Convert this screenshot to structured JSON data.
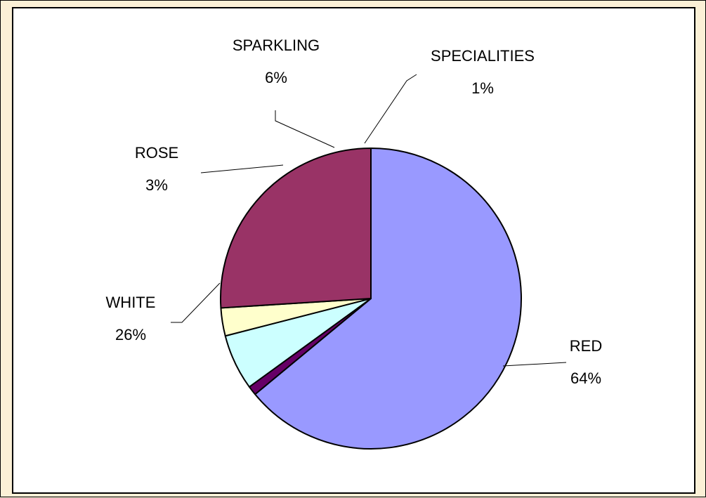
{
  "chart_data": {
    "type": "pie",
    "title": "",
    "categories": [
      "RED",
      "WHITE",
      "ROSE",
      "SPARKLING",
      "SPECIALITIES"
    ],
    "values": [
      64,
      26,
      3,
      6,
      1
    ],
    "labels": [
      "64%",
      "26%",
      "3%",
      "6%",
      "1%"
    ],
    "colors": [
      "#9999ff",
      "#993366",
      "#ffffcc",
      "#ccffff",
      "#660066"
    ],
    "legend": "none",
    "start_angle": "12 o'clock",
    "direction": "clockwise"
  }
}
